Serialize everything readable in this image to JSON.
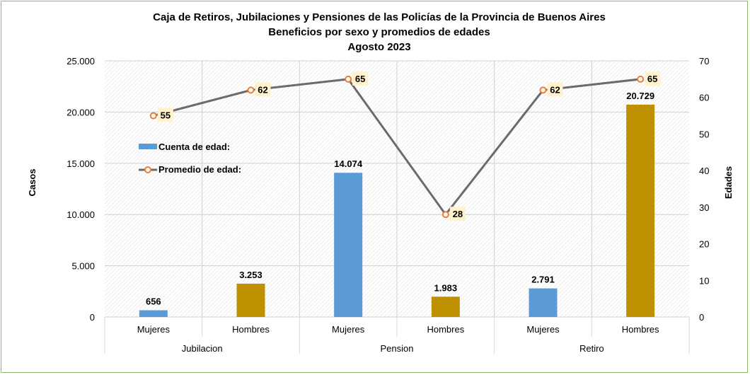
{
  "chart_data": {
    "type": "bar",
    "title": "Caja de Retiros, Jubilaciones y Pensiones de las Policías de la  Provincia de Buenos Aires",
    "subtitle": "Beneficios por sexo y promedios de edades",
    "subtitle2": "Agosto 2023",
    "ylabel_left": "Casos",
    "ylabel_right": "Edades",
    "ylim_left": [
      0,
      25000
    ],
    "ylim_right": [
      0,
      70
    ],
    "y_ticks_left": [
      "0",
      "5.000",
      "10.000",
      "15.000",
      "20.000",
      "25.000"
    ],
    "y_ticks_right": [
      "0",
      "10",
      "20",
      "30",
      "40",
      "50",
      "60",
      "70"
    ],
    "groups": [
      "Jubilacion",
      "Pension",
      "Retiro"
    ],
    "categories": [
      "Mujeres",
      "Hombres",
      "Mujeres",
      "Hombres",
      "Mujeres",
      "Hombres"
    ],
    "bar_values": [
      656,
      3253,
      14074,
      1983,
      2791,
      20729
    ],
    "bar_labels": [
      "656",
      "3.253",
      "14.074",
      "1.983",
      "2.791",
      "20.729"
    ],
    "bar_colors": [
      "#5b9bd5",
      "#bf9000",
      "#5b9bd5",
      "#bf9000",
      "#5b9bd5",
      "#bf9000"
    ],
    "avg_values": [
      55,
      62,
      65,
      28,
      62,
      65
    ],
    "avg_labels": [
      "55",
      "62",
      "65",
      "28",
      "62",
      "65"
    ],
    "line_color": "#6b6b6b",
    "marker_color": "#ed7d31",
    "legend": [
      {
        "label": "Cuenta de edad:",
        "color": "#5b9bd5"
      },
      {
        "label": "Promedio de edad:",
        "color": "#6b6b6b"
      }
    ],
    "grid": true
  }
}
